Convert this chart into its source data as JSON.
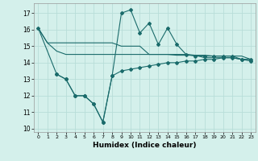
{
  "xlabel": "Humidex (Indice chaleur)",
  "bg_color": "#d4f0eb",
  "grid_color": "#b8ddd8",
  "line_color": "#1a6b6b",
  "xlim": [
    -0.5,
    23.5
  ],
  "ylim": [
    9.8,
    17.6
  ],
  "yticks": [
    10,
    11,
    12,
    13,
    14,
    15,
    16,
    17
  ],
  "xticks": [
    0,
    1,
    2,
    3,
    4,
    5,
    6,
    7,
    8,
    9,
    10,
    11,
    12,
    13,
    14,
    15,
    16,
    17,
    18,
    19,
    20,
    21,
    22,
    23
  ],
  "line1_x": [
    0,
    1,
    2,
    3,
    4,
    5,
    6,
    7,
    8,
    9,
    10,
    11,
    12,
    13,
    14,
    15,
    16,
    17,
    18,
    19,
    20,
    21,
    22,
    23
  ],
  "line1_y": [
    16.1,
    15.2,
    15.2,
    15.2,
    15.2,
    15.2,
    15.2,
    15.2,
    15.2,
    15.0,
    15.0,
    15.0,
    14.5,
    14.5,
    14.5,
    14.5,
    14.5,
    14.45,
    14.45,
    14.4,
    14.4,
    14.4,
    14.4,
    14.2
  ],
  "line2_x": [
    0,
    1,
    2,
    3,
    4,
    5,
    6,
    7,
    8,
    9,
    10,
    11,
    12,
    13,
    14,
    15,
    16,
    17,
    18,
    19,
    20,
    21,
    22,
    23
  ],
  "line2_y": [
    16.1,
    15.2,
    14.7,
    14.5,
    14.5,
    14.5,
    14.5,
    14.5,
    14.5,
    14.5,
    14.5,
    14.5,
    14.5,
    14.5,
    14.5,
    14.45,
    14.45,
    14.45,
    14.3,
    14.3,
    14.3,
    14.3,
    14.2,
    14.2
  ],
  "line3_x": [
    0,
    2,
    3,
    4,
    5,
    6,
    7,
    8,
    9,
    10,
    11,
    12,
    13,
    14,
    15,
    16,
    17,
    18,
    19,
    20,
    21,
    22,
    23
  ],
  "line3_y": [
    16.1,
    13.3,
    13.0,
    12.0,
    12.0,
    11.5,
    10.4,
    13.2,
    17.0,
    17.2,
    15.8,
    16.4,
    15.1,
    16.1,
    15.1,
    14.5,
    14.4,
    14.4,
    14.4,
    14.4,
    14.4,
    14.2,
    14.2
  ],
  "line4_x": [
    2,
    3,
    4,
    5,
    6,
    7,
    8,
    9,
    10,
    11,
    12,
    13,
    14,
    15,
    16,
    17,
    18,
    19,
    20,
    21,
    22,
    23
  ],
  "line4_y": [
    13.3,
    13.0,
    12.0,
    12.0,
    11.5,
    10.4,
    13.2,
    13.5,
    13.6,
    13.7,
    13.8,
    13.9,
    14.0,
    14.0,
    14.1,
    14.1,
    14.2,
    14.2,
    14.3,
    14.3,
    14.2,
    14.1
  ]
}
